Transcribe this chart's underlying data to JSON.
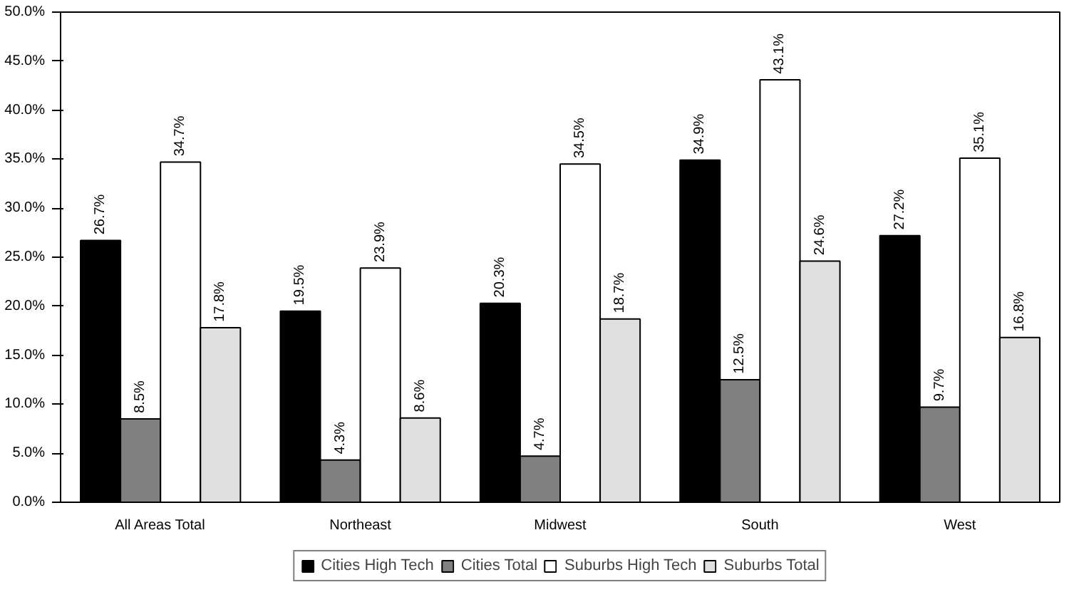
{
  "chart_data": {
    "type": "bar",
    "categories": [
      "All Areas Total",
      "Northeast",
      "Midwest",
      "South",
      "West"
    ],
    "series": [
      {
        "name": "Cities High Tech",
        "color": "#000000",
        "values": [
          26.7,
          19.5,
          20.3,
          34.9,
          27.2
        ],
        "value_labels": [
          "26.7%",
          "19.5%",
          "20.3%",
          "34.9%",
          "27.2%"
        ]
      },
      {
        "name": "Cities Total",
        "color": "#808080",
        "values": [
          8.5,
          4.3,
          4.7,
          12.5,
          9.7
        ],
        "value_labels": [
          "8.5%",
          "4.3%",
          "4.7%",
          "12.5%",
          "9.7%"
        ]
      },
      {
        "name": "Suburbs High Tech",
        "color": "#ffffff",
        "values": [
          34.7,
          23.9,
          34.5,
          43.1,
          35.1
        ],
        "value_labels": [
          "34.7%",
          "23.9%",
          "34.5%",
          "43.1%",
          "35.1%"
        ]
      },
      {
        "name": "Suburbs Total",
        "color": "#e0e0e0",
        "values": [
          17.8,
          8.6,
          18.7,
          24.6,
          16.8
        ],
        "value_labels": [
          "17.8%",
          "8.6%",
          "18.7%",
          "24.6%",
          "16.8%"
        ]
      }
    ],
    "ylim": [
      0,
      50
    ],
    "yticks": [
      {
        "value": 0,
        "label": "0.0%"
      },
      {
        "value": 5,
        "label": "5.0%"
      },
      {
        "value": 10,
        "label": "10.0%"
      },
      {
        "value": 15,
        "label": "15.0%"
      },
      {
        "value": 20,
        "label": "20.0%"
      },
      {
        "value": 25,
        "label": "25.0%"
      },
      {
        "value": 30,
        "label": "30.0%"
      },
      {
        "value": 35,
        "label": "35.0%"
      },
      {
        "value": 40,
        "label": "40.0%"
      },
      {
        "value": 45,
        "label": "45.0%"
      },
      {
        "value": 50,
        "label": "50.0%"
      }
    ],
    "grid": false,
    "legend": "bottom"
  }
}
